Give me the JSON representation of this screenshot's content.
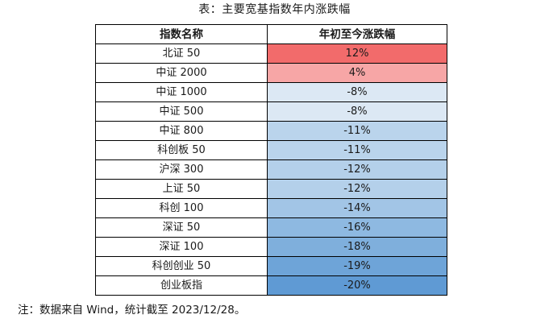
{
  "title": "表：主要宽基指数年内涨跌幅",
  "table": {
    "headers": [
      "指数名称",
      "年初至今涨跌幅"
    ],
    "rows": [
      {
        "name": "北证 50",
        "change": "12%",
        "color": "#f26b6b"
      },
      {
        "name": "中证 2000",
        "change": "4%",
        "color": "#f7a6a6"
      },
      {
        "name": "中证 1000",
        "change": "-8%",
        "color": "#dce8f4"
      },
      {
        "name": "中证 500",
        "change": "-8%",
        "color": "#dce8f4"
      },
      {
        "name": "中证 800",
        "change": "-11%",
        "color": "#bad4ec"
      },
      {
        "name": "科创板 50",
        "change": "-11%",
        "color": "#bad4ec"
      },
      {
        "name": "沪深 300",
        "change": "-12%",
        "color": "#b4d0ea"
      },
      {
        "name": "上证 50",
        "change": "-12%",
        "color": "#b4d0ea"
      },
      {
        "name": "科创 100",
        "change": "-14%",
        "color": "#a2c5e6"
      },
      {
        "name": "深证 50",
        "change": "-16%",
        "color": "#8eb9e1"
      },
      {
        "name": "深证 100",
        "change": "-18%",
        "color": "#7fafdc"
      },
      {
        "name": "科创创业 50",
        "change": "-19%",
        "color": "#6ea4d8"
      },
      {
        "name": "创业板指",
        "change": "-20%",
        "color": "#5f9ad4"
      }
    ]
  },
  "note": "注：数据来自 Wind，统计截至 2023/12/28。"
}
